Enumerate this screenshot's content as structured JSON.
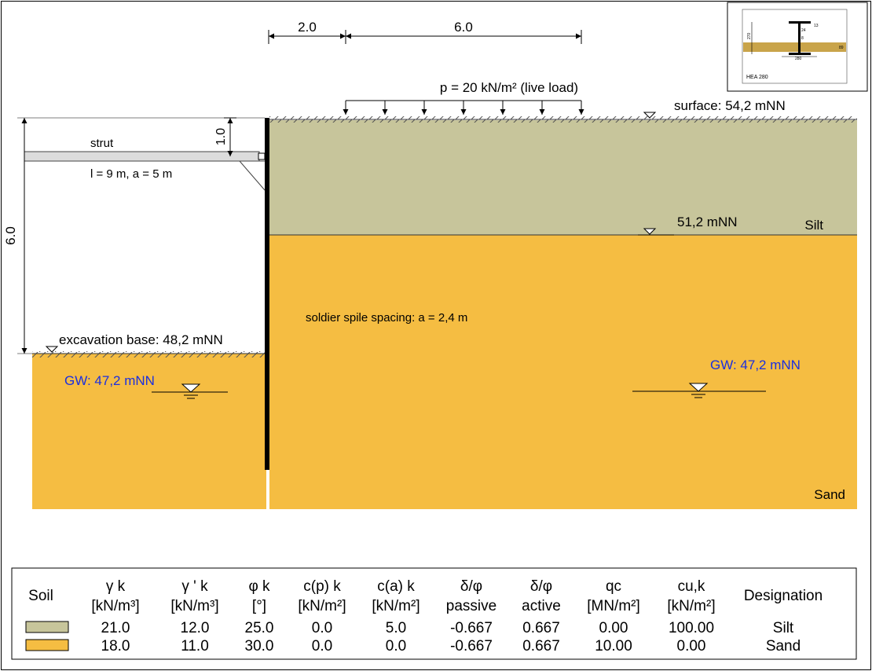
{
  "dimensions": {
    "top_left": "2.0",
    "top_right": "6.0",
    "strut_depth": "1.0",
    "excavation_depth": "6.0"
  },
  "labels": {
    "live_load": "p = 20 kN/m² (live load)",
    "surface": "surface: 54,2 mNN",
    "silt_boundary": "51,2 mNN",
    "silt": "Silt",
    "sand": "Sand",
    "strut": "strut",
    "strut_props": "l = 9 m, a = 5 m",
    "spacing": "soldier spile spacing: a = 2,4 m",
    "excavation_base": "excavation base: 48,2 mNN",
    "gw_left": "GW: 47,2 mNN",
    "gw_right": "GW: 47,2 mNN"
  },
  "profile": {
    "name": "HEA 280",
    "dim_13": "13",
    "dim_24": "24",
    "dim_8": "8",
    "dim_270": "270",
    "dim_280": "280",
    "dim_89": "89"
  },
  "colors": {
    "silt": "#c7c59b",
    "sand": "#f5bd42",
    "gw_text": "#1a2fe0"
  },
  "table": {
    "headers": [
      {
        "l1": "Soil",
        "l2": ""
      },
      {
        "l1": "γ k",
        "l2": "[kN/m³]"
      },
      {
        "l1": "γ ' k",
        "l2": "[kN/m³]"
      },
      {
        "l1": "φ k",
        "l2": "[°]"
      },
      {
        "l1": "c(p) k",
        "l2": "[kN/m²]"
      },
      {
        "l1": "c(a) k",
        "l2": "[kN/m²]"
      },
      {
        "l1": "δ/φ",
        "l2": "passive"
      },
      {
        "l1": "δ/φ",
        "l2": "active"
      },
      {
        "l1": "qc",
        "l2": "[MN/m²]"
      },
      {
        "l1": "cu,k",
        "l2": "[kN/m²]"
      },
      {
        "l1": "Designation",
        "l2": ""
      }
    ],
    "rows": [
      {
        "values": [
          "21.0",
          "12.0",
          "25.0",
          "0.0",
          "5.0",
          "-0.667",
          "0.667",
          "0.00",
          "100.00",
          "Silt"
        ]
      },
      {
        "values": [
          "18.0",
          "11.0",
          "30.0",
          "0.0",
          "0.0",
          "-0.667",
          "0.667",
          "10.00",
          "0.00",
          "Sand"
        ]
      }
    ]
  }
}
